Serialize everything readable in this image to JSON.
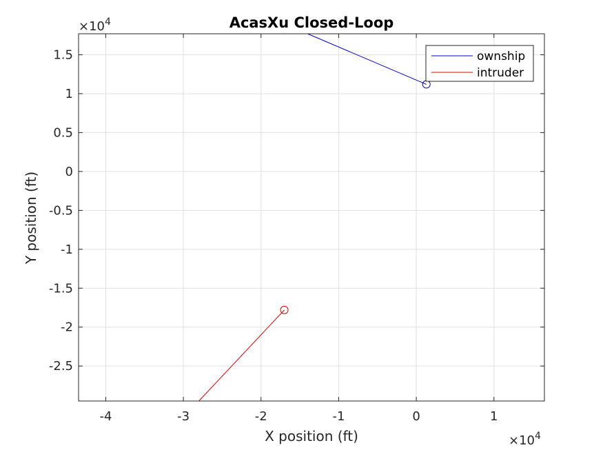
{
  "chart_data": {
    "type": "line",
    "title": "AcasXu Closed-Loop",
    "xlabel": "X position (ft)",
    "ylabel": "Y position (ft)",
    "x_multiplier": "×10",
    "x_multiplier_exp": "4",
    "y_multiplier": "×10",
    "y_multiplier_exp": "4",
    "xlim": [
      -43500,
      16500
    ],
    "ylim": [
      -29500,
      17700
    ],
    "xticks": [
      -40000,
      -30000,
      -20000,
      -10000,
      0,
      10000
    ],
    "xtick_labels": [
      "-4",
      "-3",
      "-2",
      "-1",
      "0",
      "1"
    ],
    "yticks": [
      -25000,
      -20000,
      -15000,
      -10000,
      -5000,
      0,
      5000,
      10000,
      15000
    ],
    "ytick_labels": [
      "-2.5",
      "-2",
      "-1.5",
      "-1",
      "-0.5",
      "0",
      "0.5",
      "1",
      "1.5"
    ],
    "grid": true,
    "legend_position": "top-right",
    "series": [
      {
        "name": "ownship",
        "color": "#0000cc",
        "x": [
          -14000,
          1300
        ],
        "y": [
          17700,
          11200
        ],
        "end_marker": "circle"
      },
      {
        "name": "intruder",
        "color": "#dd0000",
        "x": [
          -28000,
          -17000
        ],
        "y": [
          -29500,
          -17800
        ],
        "end_marker": "circle"
      }
    ]
  }
}
